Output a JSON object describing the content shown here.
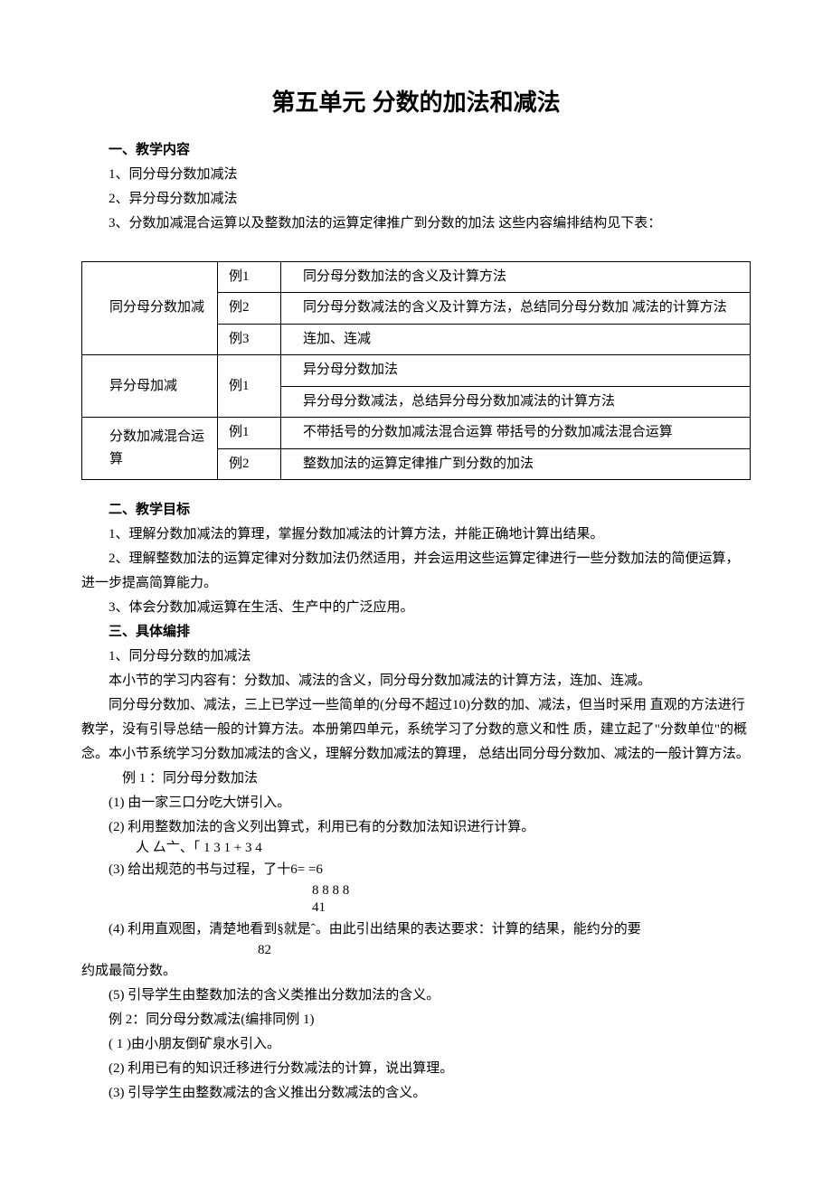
{
  "title": "第五单元 分数的加法和减法",
  "sec1": {
    "heading": "一、教学内容",
    "items": [
      "1、同分母分数加减法",
      "2、异分母分数加减法",
      "3、分数加减混合运算以及整数加法的运算定律推广到分数的加法 这些内容编排结构见下表："
    ]
  },
  "table": {
    "rows": [
      {
        "g": "",
        "ex": "例1",
        "desc": "同分母分数加法的含义及计算方法"
      },
      {
        "g": "同分母分数加减",
        "ex": "例2",
        "desc": "同分母分数减法的含义及计算方法，总结同分母分数加 减法的计算方法",
        "gRowspan": 1
      },
      {
        "g": "",
        "ex": "例3",
        "desc": "连加、连减"
      },
      {
        "g": "异分母加减",
        "ex": "例1",
        "desc": "异分母分数加法",
        "gRowspan": 2
      },
      {
        "g": "",
        "ex": "",
        "desc": "异分母分数减法，总结异分母分数加减法的计算方法"
      },
      {
        "g": "分数加减混合运算",
        "ex": "例1",
        "desc": "不带括号的分数加减法混合运算 带括号的分数加减法混合运算",
        "gRowspan": 2
      },
      {
        "g": "",
        "ex": "例2",
        "desc": "整数加法的运算定律推广到分数的加法"
      }
    ]
  },
  "sec2": {
    "heading": "二、教学目标",
    "p1": "1、理解分数加减法的算理，掌握分数加减法的计算方法，并能正确地计算出结果。",
    "p2": "2、理解整数加法的运算定律对分数加法仍然适用，并会运用这些运算定律进行一些分数加法的简便运算，进一步提高简算能力。",
    "p3": "3、体会分数加减运算在生活、生产中的广泛应用。"
  },
  "sec3": {
    "heading": "三、具体编排",
    "h1": "1、同分母分数的加减法",
    "p1": "本小节的学习内容有：分数加、减法的含义，同分母分数加减法的计算方法，连加、连减。",
    "p2": "同分母分数加、减法，三上已学过一些简单的(分母不超过10)分数的加、减法，但当时采用 直观的方法进行教学，没有引导总结一般的计算方法。本册第四单元，系统学习了分数的意义和性 质，建立起了\"分数单位\"的概念。本小节系统学习分数加减法的含义，理解分数加减法的算理， 总结出同分母分数加、减法的一般计算方法。",
    "ex1": "例 1 ：同分母分数加法",
    "l1": "(1)    由一家三口分吃大饼引入。",
    "l2": "(2)   利用整数加法的含义列出算式，利用已有的分数加法知识进行计算。",
    "frac_a": "人    厶亠、「    1   3    1 + 3   4",
    "l3": "(3) 给出规范的书与过程，了十6=       =6",
    "frac_b": "8 8 8 8",
    "frac_c": "41",
    "l4": "(4) 利用直观图，清楚地看到§就是ˆ。由此引出结果的表达要求：计算的结果，能约分的要",
    "frac_d": "82",
    "l4b": "约成最简分数。",
    "l5": "(5) 引导学生由整数加法的含义类推出分数加法的含义。",
    "ex2": "例 2：同分母分数减法(编排同例 1)",
    "m1": "( 1 )由小朋友倒矿泉水引入。",
    "m2": "(2) 利用已有的知识迁移进行分数减法的计算，说出算理。",
    "m3": "(3) 引导学生由整数减法的含义推出分数减法的含义。"
  }
}
